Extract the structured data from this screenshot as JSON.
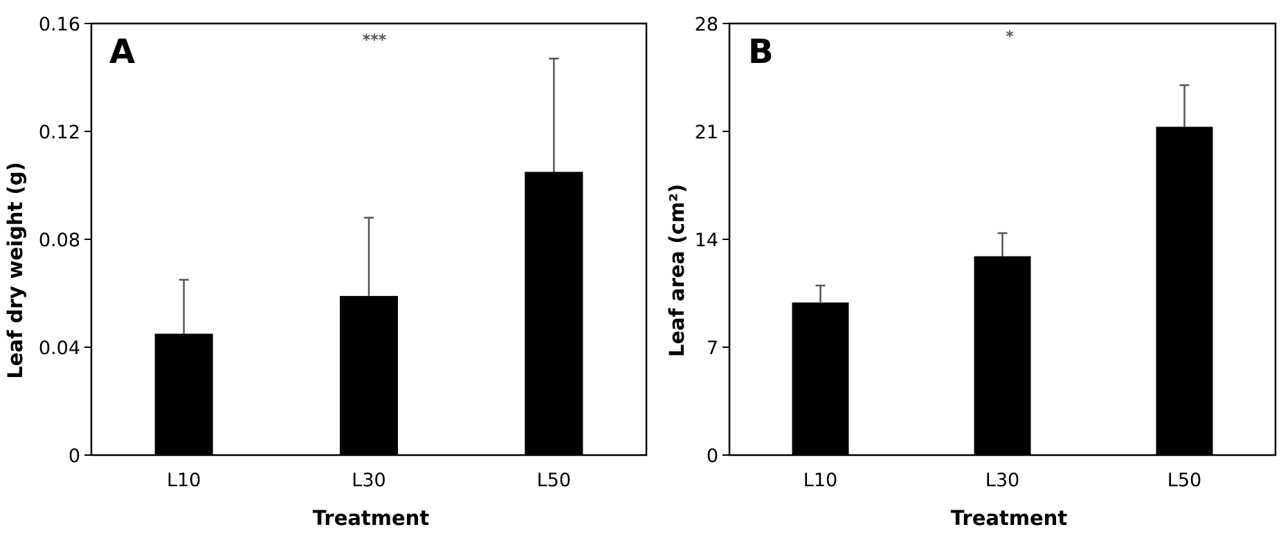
{
  "chart_data": [
    {
      "type": "bar",
      "panel_label": "A",
      "significance": "***",
      "categories": [
        "L10",
        "L30",
        "L50"
      ],
      "values": [
        0.045,
        0.059,
        0.105
      ],
      "error_plus": [
        0.02,
        0.029,
        0.042
      ],
      "xlabel": "Treatment",
      "ylabel": "Leaf dry weight (g)",
      "ylim": [
        0,
        0.16
      ],
      "yticks": [
        0,
        0.04,
        0.08,
        0.12,
        0.16
      ],
      "ytick_labels": [
        "0",
        "0.04",
        "0.08",
        "0.12",
        "0.16"
      ],
      "bar_color": "#000000",
      "error_color": "#555555",
      "grid": false
    },
    {
      "type": "bar",
      "panel_label": "B",
      "significance": "*",
      "categories": [
        "L10",
        "L30",
        "L50"
      ],
      "values": [
        9.9,
        12.9,
        21.3
      ],
      "error_plus": [
        1.1,
        1.5,
        2.7
      ],
      "xlabel": "Treatment",
      "ylabel": "Leaf area (cm²)",
      "ylim": [
        0,
        28
      ],
      "yticks": [
        0,
        7,
        14,
        21,
        28
      ],
      "ytick_labels": [
        "0",
        "7",
        "14",
        "21",
        "28"
      ],
      "bar_color": "#000000",
      "error_color": "#555555",
      "grid": false
    }
  ]
}
